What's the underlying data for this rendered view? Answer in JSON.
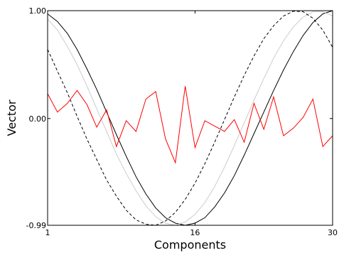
{
  "chart_data": {
    "type": "line",
    "title": "",
    "xlabel": "Components",
    "ylabel": "Vector",
    "xlim": [
      1,
      30
    ],
    "ylim": [
      -0.99,
      1.0
    ],
    "x_ticks": [
      1,
      16,
      30
    ],
    "x_tick_labels": [
      "1",
      "16",
      "30"
    ],
    "y_ticks": [
      1.0,
      0.0,
      -0.99
    ],
    "y_tick_labels": [
      "1.00",
      "0.00",
      "-0.99"
    ],
    "grid": false,
    "legend": "none",
    "series": [
      {
        "style": "solid",
        "color": "#000000",
        "x": [
          1,
          2,
          3,
          4,
          5,
          6,
          7,
          8,
          9,
          10,
          11,
          12,
          13,
          14,
          15,
          16,
          17,
          18,
          19,
          20,
          21,
          22,
          23,
          24,
          25,
          26,
          27,
          28,
          29,
          30
        ],
        "values": [
          0.97,
          0.9,
          0.79,
          0.64,
          0.46,
          0.27,
          0.06,
          -0.15,
          -0.35,
          -0.54,
          -0.7,
          -0.83,
          -0.92,
          -0.97,
          -0.99,
          -0.97,
          -0.92,
          -0.82,
          -0.69,
          -0.53,
          -0.34,
          -0.14,
          0.06,
          0.26,
          0.45,
          0.62,
          0.77,
          0.89,
          0.97,
          1.0
        ]
      },
      {
        "style": "solid",
        "color": "#cccccc",
        "x": [
          1,
          2,
          3,
          4,
          5,
          6,
          7,
          8,
          9,
          10,
          11,
          12,
          13,
          14,
          15,
          16,
          17,
          18,
          19,
          20,
          21,
          22,
          23,
          24,
          25,
          26,
          27,
          28,
          29,
          30
        ],
        "values": [
          0.92,
          0.82,
          0.67,
          0.5,
          0.3,
          0.09,
          -0.12,
          -0.33,
          -0.51,
          -0.67,
          -0.81,
          -0.91,
          -0.97,
          -0.99,
          -0.96,
          -0.89,
          -0.78,
          -0.63,
          -0.45,
          -0.25,
          -0.04,
          0.17,
          0.37,
          0.56,
          0.72,
          0.85,
          0.94,
          0.99,
          0.99,
          0.95
        ]
      },
      {
        "style": "dashed",
        "color": "#000000",
        "x": [
          1,
          2,
          3,
          4,
          5,
          6,
          7,
          8,
          9,
          10,
          11,
          12,
          13,
          14,
          15,
          16,
          17,
          18,
          19,
          20,
          21,
          22,
          23,
          24,
          25,
          26,
          27,
          28,
          29,
          30
        ],
        "values": [
          0.64,
          0.44,
          0.24,
          0.02,
          -0.19,
          -0.38,
          -0.57,
          -0.72,
          -0.85,
          -0.94,
          -0.98,
          -0.99,
          -0.95,
          -0.87,
          -0.75,
          -0.6,
          -0.42,
          -0.22,
          -0.01,
          0.2,
          0.4,
          0.58,
          0.74,
          0.86,
          0.95,
          0.995,
          0.99,
          0.93,
          0.82,
          0.66
        ]
      },
      {
        "style": "solid",
        "color": "#ff0000",
        "x": [
          1,
          2,
          3,
          4,
          5,
          6,
          7,
          8,
          9,
          10,
          11,
          12,
          13,
          14,
          15,
          16,
          17,
          18,
          19,
          20,
          21,
          22,
          23,
          24,
          25,
          26,
          27,
          28,
          29,
          30
        ],
        "values": [
          0.23,
          0.06,
          0.14,
          0.26,
          0.13,
          -0.08,
          0.08,
          -0.26,
          -0.02,
          -0.12,
          0.18,
          0.25,
          -0.19,
          -0.41,
          0.3,
          -0.27,
          -0.02,
          -0.07,
          -0.12,
          -0.01,
          -0.22,
          0.14,
          -0.1,
          0.2,
          -0.16,
          -0.09,
          0.01,
          0.18,
          -0.26,
          -0.16
        ]
      }
    ]
  }
}
